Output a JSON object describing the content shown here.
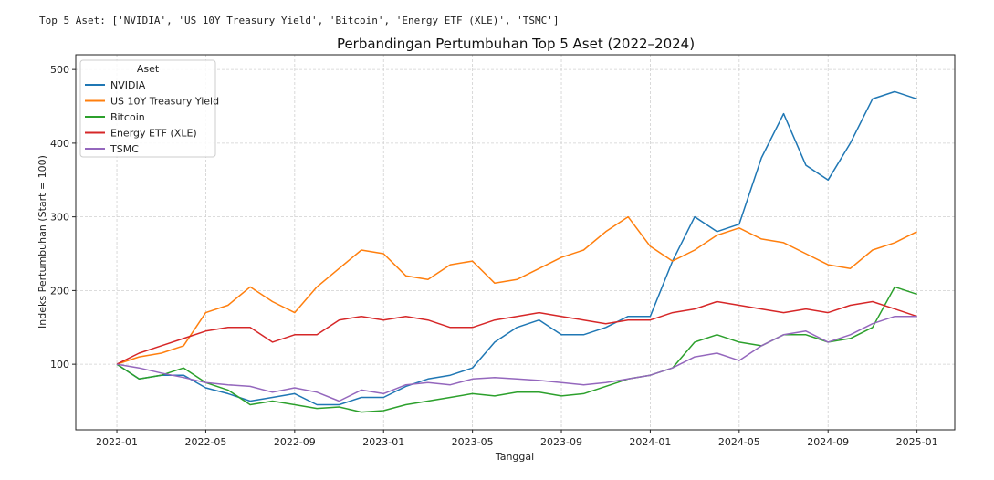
{
  "output_text": "Top 5 Aset: ['NVIDIA', 'US 10Y Treasury Yield', 'Bitcoin', 'Energy ETF (XLE)', 'TSMC']",
  "chart_data": {
    "type": "line",
    "title": "Perbandingan Pertumbuhan Top 5 Aset (2022–2024)",
    "xlabel": "Tanggal",
    "ylabel": "Indeks Pertumbuhan (Start = 100)",
    "ylim": [
      11,
      520
    ],
    "xlim_months": [
      -1.85,
      37.7
    ],
    "grid": true,
    "legend": {
      "title": "Aset",
      "placement": "top-left"
    },
    "x_ticks": [
      {
        "label": "2022-01",
        "month": 0
      },
      {
        "label": "2022-05",
        "month": 4
      },
      {
        "label": "2022-09",
        "month": 8
      },
      {
        "label": "2023-01",
        "month": 12
      },
      {
        "label": "2023-05",
        "month": 16
      },
      {
        "label": "2023-09",
        "month": 20
      },
      {
        "label": "2024-01",
        "month": 24
      },
      {
        "label": "2024-05",
        "month": 28
      },
      {
        "label": "2024-09",
        "month": 32
      },
      {
        "label": "2025-01",
        "month": 36
      }
    ],
    "y_ticks": [
      100,
      200,
      300,
      400,
      500
    ],
    "x_months_from_2022_01": [
      0,
      1,
      2,
      3,
      4,
      5,
      6,
      7,
      8,
      9,
      10,
      11,
      12,
      13,
      14,
      15,
      16,
      17,
      18,
      19,
      20,
      21,
      22,
      23,
      24,
      25,
      26,
      27,
      28,
      29,
      30,
      31,
      32,
      33,
      34,
      35,
      36
    ],
    "series": [
      {
        "name": "NVIDIA",
        "color": "#1f77b4",
        "values": [
          100,
          80,
          85,
          85,
          68,
          60,
          50,
          55,
          60,
          45,
          45,
          55,
          55,
          70,
          80,
          85,
          95,
          130,
          150,
          160,
          140,
          140,
          150,
          165,
          165,
          240,
          300,
          280,
          290,
          380,
          440,
          370,
          350,
          400,
          460,
          470,
          460
        ]
      },
      {
        "name": "US 10Y Treasury Yield",
        "color": "#ff7f0e",
        "values": [
          100,
          110,
          115,
          125,
          170,
          180,
          205,
          185,
          170,
          205,
          230,
          255,
          250,
          220,
          215,
          235,
          240,
          210,
          215,
          230,
          245,
          255,
          280,
          300,
          260,
          240,
          255,
          275,
          285,
          270,
          265,
          250,
          235,
          230,
          255,
          265,
          280
        ]
      },
      {
        "name": "Bitcoin",
        "color": "#2ca02c",
        "values": [
          100,
          80,
          85,
          95,
          75,
          65,
          45,
          50,
          45,
          40,
          42,
          35,
          37,
          45,
          50,
          55,
          60,
          57,
          62,
          62,
          57,
          60,
          70,
          80,
          85,
          95,
          130,
          140,
          130,
          125,
          140,
          140,
          130,
          135,
          150,
          205,
          195
        ]
      },
      {
        "name": "Energy ETF (XLE)",
        "color": "#d62728",
        "values": [
          100,
          115,
          125,
          135,
          145,
          150,
          150,
          130,
          140,
          140,
          160,
          165,
          160,
          165,
          160,
          150,
          150,
          160,
          165,
          170,
          165,
          160,
          155,
          160,
          160,
          170,
          175,
          185,
          180,
          175,
          170,
          175,
          170,
          180,
          185,
          175,
          165
        ]
      },
      {
        "name": "TSMC",
        "color": "#9467bd",
        "values": [
          100,
          95,
          88,
          82,
          75,
          72,
          70,
          62,
          68,
          62,
          50,
          65,
          60,
          72,
          75,
          72,
          80,
          82,
          80,
          78,
          75,
          72,
          75,
          80,
          85,
          95,
          110,
          115,
          105,
          125,
          140,
          145,
          130,
          140,
          155,
          165,
          165
        ]
      }
    ]
  }
}
